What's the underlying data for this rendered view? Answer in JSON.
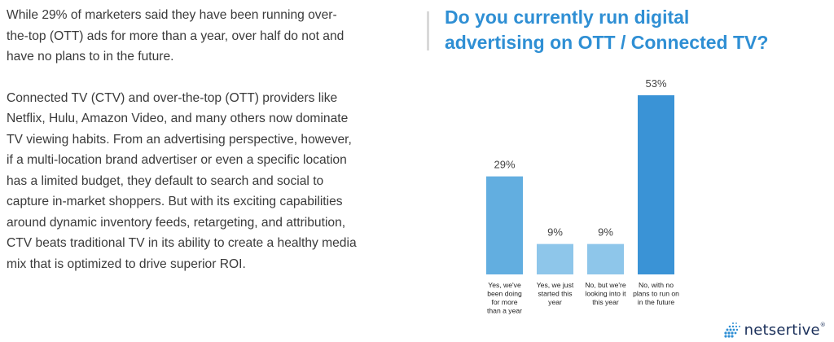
{
  "article": {
    "paragraph_1": "While 29% of marketers said they have been running over-the-top (OTT) ads for more than a year, over half do not and have no plans to in the future.",
    "paragraph_2": "Connected TV (CTV) and over-the-top (OTT) providers like Netflix, Hulu, Amazon Video, and many others now dominate TV viewing habits. From an advertising perspective, however, if a multi-location brand advertiser or even a specific location has a limited budget, they default to search and social to capture in-market shoppers. But with its exciting capabilities around dynamic inventory feeds, retargeting, and attribution, CTV beats traditional TV in its ability to create a healthy media mix that is optimized to drive superior ROI."
  },
  "chart_data": {
    "type": "bar",
    "title_line_1": "Do you currently run digital",
    "title_line_2": "advertising on OTT / Connected TV?",
    "categories": [
      [
        "Yes, we've",
        "been doing",
        "for more",
        "than a year"
      ],
      [
        "Yes, we just",
        "started this",
        "year"
      ],
      [
        "No, but we're",
        "looking into it",
        "this year"
      ],
      [
        "No, with no",
        "plans to run on",
        "in the future"
      ]
    ],
    "values": [
      29,
      9,
      9,
      53
    ],
    "value_labels": [
      "29%",
      "9%",
      "9%",
      "53%"
    ],
    "ylim": [
      0,
      53
    ],
    "grid": false,
    "colors": [
      "#62aee0",
      "#8ec6ea",
      "#8ec6ea",
      "#3a93d6"
    ]
  },
  "brand": {
    "name": "netsertive",
    "trademark": "®",
    "color": "#1a2f5a"
  }
}
